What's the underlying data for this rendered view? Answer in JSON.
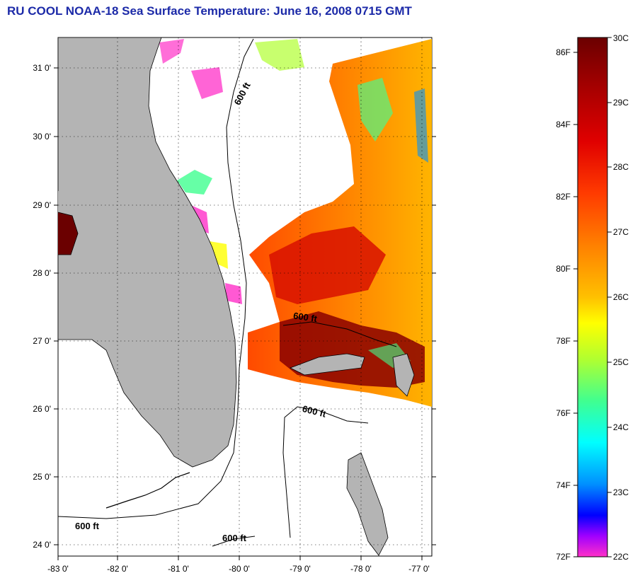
{
  "title": "RU COOL  NOAA-18  Sea Surface Temperature:  June 16, 2008 0715 GMT",
  "axes": {
    "x_ticks": [
      "-83 0'",
      "-82 0'",
      "-81 0'",
      "-80 0'",
      "-79 0'",
      "-78 0'",
      "-77 0'"
    ],
    "y_ticks": [
      "31 0'",
      "30 0'",
      "29 0'",
      "28 0'",
      "27 0'",
      "26 0'",
      "25 0'",
      "24 0'"
    ]
  },
  "contours": [
    {
      "label": "600 ft"
    },
    {
      "label": "600 ft"
    },
    {
      "label": "600 ft"
    },
    {
      "label": "600 ft"
    },
    {
      "label": "600 ft"
    }
  ],
  "colorbar": {
    "fahrenheit": [
      "86F",
      "84F",
      "82F",
      "80F",
      "78F",
      "76F",
      "74F",
      "72F"
    ],
    "celsius": [
      "30C",
      "29C",
      "28C",
      "27C",
      "26C",
      "25C",
      "24C",
      "23C",
      "22C"
    ],
    "colors": [
      "#6b0000",
      "#a80000",
      "#e00000",
      "#ff3b00",
      "#ff8000",
      "#ffc000",
      "#ffff00",
      "#b0ff30",
      "#40ff90",
      "#00ffff",
      "#0090ff",
      "#0000ff",
      "#a000ff",
      "#ff30c8"
    ]
  },
  "colors": {
    "land": "#b4b4b4",
    "title": "#1c2aa8",
    "cloud": "#ffffff"
  }
}
